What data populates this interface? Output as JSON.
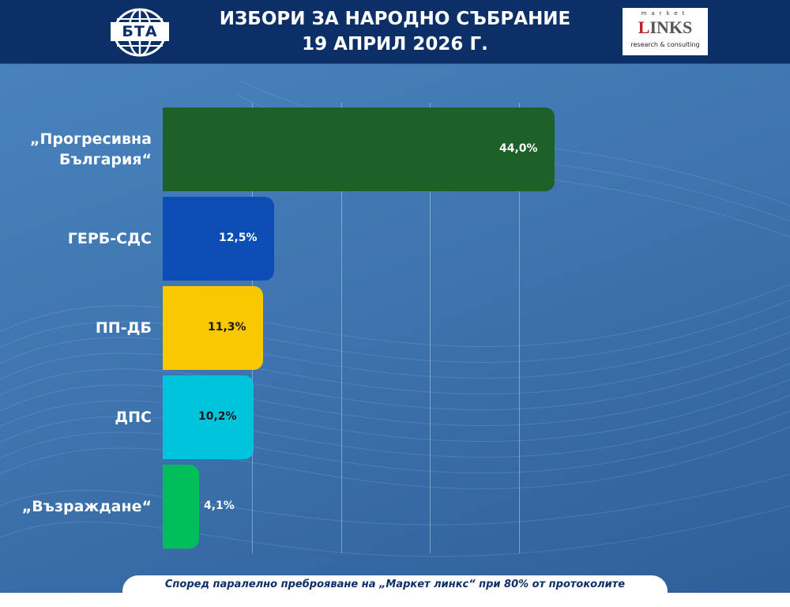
{
  "header": {
    "title_line1": "ИЗБОРИ ЗА НАРОДНО СЪБРАНИЕ",
    "title_line2": "19 АПРИЛ 2026 Г.",
    "left_logo_text": "БТА",
    "right_logo": {
      "top": "market",
      "main_first": "L",
      "main_rest": "INKS",
      "sub": "research & consulting"
    }
  },
  "chart_data": {
    "type": "bar",
    "orientation": "horizontal",
    "categories": [
      "„Прогресивна България“",
      "ГЕРБ-СДС",
      "ПП-ДБ",
      "ДПС",
      "„Възраждане“"
    ],
    "category_lines": [
      [
        "„Прогресивна",
        "България“"
      ],
      [
        "ГЕРБ-СДС"
      ],
      [
        "ПП-ДБ"
      ],
      [
        "ДПС"
      ],
      [
        "„Възраждане“"
      ]
    ],
    "values": [
      44.0,
      12.5,
      11.3,
      10.2,
      4.1
    ],
    "value_labels": [
      "44,0%",
      "12,5%",
      "11,3%",
      "10,2%",
      "4,1%"
    ],
    "colors": [
      "#1d6128",
      "#0b4db5",
      "#f9c800",
      "#00c4dc",
      "#00be5a"
    ],
    "label_colors": [
      "#ffffff",
      "#ffffff",
      "#1a1a1a",
      "#1a1a1a",
      "#ffffff"
    ],
    "xlim": [
      0,
      50
    ],
    "grid": true,
    "legend": "none"
  },
  "footer": {
    "text": "Според паралелно преброяване на „Маркет линкс“ при 80% от протоколите"
  }
}
